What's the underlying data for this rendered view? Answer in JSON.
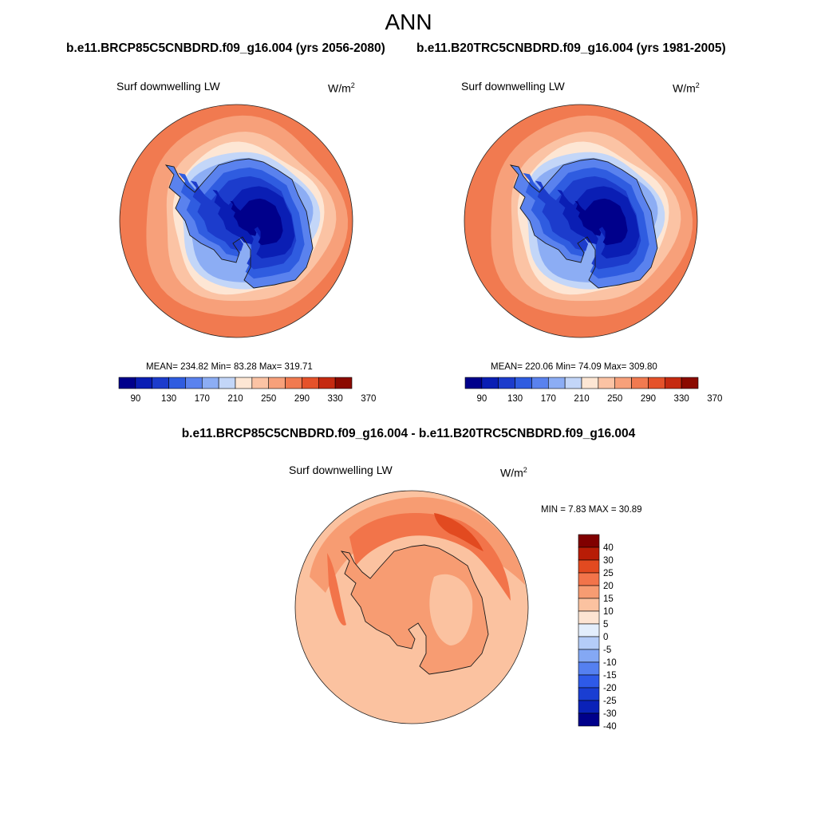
{
  "page": {
    "title": "ANN",
    "diff_title": "b.e11.BRCP85C5CNBDRD.f09_g16.004 - b.e11.B20TRC5CNBDRD.f09_g16.004"
  },
  "colors": {
    "scale_abs": [
      "#00008b",
      "#0a1eb4",
      "#1c3ccc",
      "#2f5ce0",
      "#5a82ee",
      "#8cadf4",
      "#c3d6f8",
      "#fde6d4",
      "#fbc3a4",
      "#f7a07a",
      "#f17a50",
      "#e5522a",
      "#c52a10",
      "#8b0a00"
    ],
    "scale_diff": [
      "#00008b",
      "#0a22b8",
      "#1a3ed2",
      "#2e5ae8",
      "#5580f0",
      "#84a8f4",
      "#b4ccf8",
      "#e3eefc",
      "#fde4d2",
      "#fbc2a0",
      "#f79c72",
      "#f2744a",
      "#e24a20",
      "#b81c06",
      "#800000"
    ],
    "coast": "#1a1a1a",
    "frame": "#222222"
  },
  "panels": [
    {
      "id": "future",
      "case_title": "b.e11.BRCP85C5CNBDRD.f09_g16.004 (yrs 2056-2080)",
      "var_label": "Surf downwelling LW",
      "unit_base": "W/m",
      "unit_sup": "2",
      "stats_text": "MEAN= 234.82  Min=  83.28  Max= 319.71",
      "mean": 234.82,
      "min": 83.28,
      "max": 319.71,
      "colorbar_ticks": [
        "90",
        "130",
        "170",
        "210",
        "250",
        "290",
        "330",
        "370"
      ]
    },
    {
      "id": "historical",
      "case_title": "b.e11.B20TRC5CNBDRD.f09_g16.004 (yrs 1981-2005)",
      "var_label": "Surf downwelling LW",
      "unit_base": "W/m",
      "unit_sup": "2",
      "stats_text": "MEAN= 220.06  Min=  74.09  Max= 309.80",
      "mean": 220.06,
      "min": 74.09,
      "max": 309.8,
      "colorbar_ticks": [
        "90",
        "130",
        "170",
        "210",
        "250",
        "290",
        "330",
        "370"
      ]
    },
    {
      "id": "difference",
      "var_label": "Surf downwelling LW",
      "unit_base": "W/m",
      "unit_sup": "2",
      "stats_text": "MIN =   7.83 MAX =  30.89",
      "min": 7.83,
      "max": 30.89,
      "colorbar_ticks": [
        "40",
        "30",
        "25",
        "20",
        "15",
        "10",
        "5",
        "0",
        "-5",
        "-10",
        "-15",
        "-20",
        "-25",
        "-30",
        "-40"
      ]
    }
  ]
}
